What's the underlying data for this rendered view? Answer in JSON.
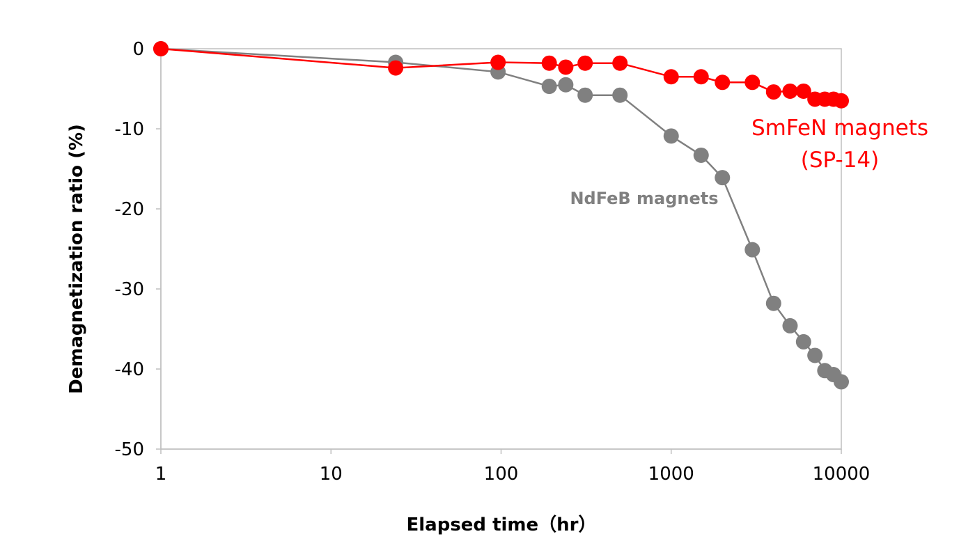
{
  "chart_data": {
    "type": "scatter",
    "xscale": "log",
    "xlim": [
      1,
      10000
    ],
    "ylim": [
      -50,
      0
    ],
    "xticks": [
      1,
      10,
      100,
      1000,
      10000
    ],
    "yticks": [
      0,
      -10,
      -20,
      -30,
      -40,
      -50
    ],
    "xtick_labels": [
      "1",
      "10",
      "100",
      "1000",
      "10000"
    ],
    "ytick_labels": [
      "0",
      "-10",
      "-20",
      "-30",
      "-40",
      "-50"
    ],
    "xlabel": "Elapsed time（hr）",
    "ylabel": "Demagnetization ratio (%)",
    "grid": false,
    "series": [
      {
        "name": "NdFeB magnets",
        "color": "#808080",
        "x": [
          1,
          24,
          96,
          192,
          240,
          312,
          500,
          1000,
          1500,
          2000,
          3000,
          4000,
          5000,
          6000,
          7000,
          8000,
          9000,
          10000
        ],
        "y": [
          0,
          -1.7,
          -2.9,
          -4.7,
          -4.5,
          -5.8,
          -5.8,
          -10.9,
          -13.3,
          -16.1,
          -25.1,
          -31.8,
          -34.6,
          -36.6,
          -38.3,
          -40.2,
          -40.7,
          -41.6
        ]
      },
      {
        "name": "SmFeN magnets",
        "name_line2": "(SP-14)",
        "color": "#ff0000",
        "x": [
          1,
          24,
          96,
          192,
          240,
          312,
          500,
          1000,
          1500,
          2000,
          3000,
          4000,
          5000,
          6000,
          7000,
          8000,
          9000,
          10000
        ],
        "y": [
          0,
          -2.4,
          -1.7,
          -1.8,
          -2.3,
          -1.8,
          -1.8,
          -3.5,
          -3.5,
          -4.2,
          -4.2,
          -5.4,
          -5.3,
          -5.3,
          -6.3,
          -6.3,
          -6.3,
          -6.5
        ]
      }
    ]
  }
}
